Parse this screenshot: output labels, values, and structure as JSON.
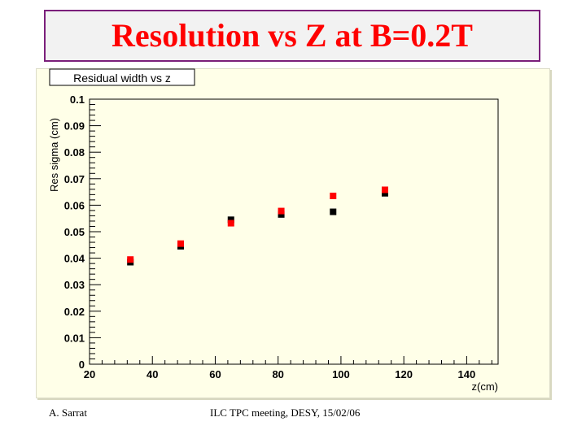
{
  "slide": {
    "title": "Resolution vs Z at B=0.2T",
    "footer_left": "A. Sarrat",
    "footer_center": "ILC TPC meeting, DESY, 15/02/06"
  },
  "colors": {
    "title": "#ff0000",
    "title_border": "#7a1f7a",
    "canvas_bg": "#ffffe8",
    "series_black": "#000000",
    "series_red": "#ff0000"
  },
  "chart_data": {
    "type": "scatter",
    "title": "Residual width vs z",
    "xlabel": "z(cm)",
    "ylabel": "Res sigma (cm)",
    "xlim": [
      20,
      150
    ],
    "ylim": [
      0,
      0.1
    ],
    "x_ticks": [
      "20",
      "40",
      "60",
      "80",
      "100",
      "120",
      "140"
    ],
    "y_ticks": [
      "0",
      "0.01",
      "0.02",
      "0.03",
      "0.04",
      "0.05",
      "0.06",
      "0.07",
      "0.08",
      "0.09",
      "0.1"
    ],
    "grid": false,
    "series": [
      {
        "color": "#000000",
        "points": [
          [
            33,
            0.0385
          ],
          [
            49,
            0.0445
          ],
          [
            65,
            0.0545
          ],
          [
            81,
            0.0565
          ],
          [
            97.5,
            0.0575
          ],
          [
            114,
            0.0645
          ]
        ]
      },
      {
        "color": "#ff0000",
        "points": [
          [
            33,
            0.0395
          ],
          [
            49,
            0.0455
          ],
          [
            65,
            0.0532
          ],
          [
            81,
            0.0578
          ],
          [
            97.5,
            0.0635
          ],
          [
            114,
            0.0658
          ]
        ]
      }
    ]
  }
}
